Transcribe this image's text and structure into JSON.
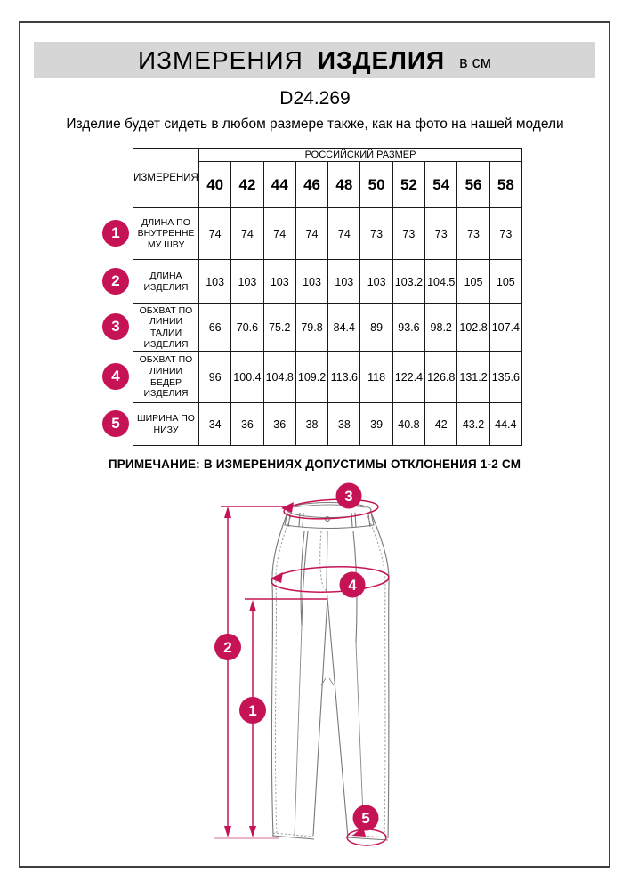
{
  "header": {
    "title_main": "ИЗМЕРЕНИЯ",
    "title_bold": "ИЗДЕЛИЯ",
    "title_unit": "в см"
  },
  "product_code": "D24.269",
  "description": "Изделие будет сидеть в любом размере также, как на фото на нашей модели",
  "table": {
    "corner_header": "ИЗМЕРЕНИЯ",
    "group_header": "РОССИЙСКИЙ РАЗМЕР",
    "sizes": [
      "40",
      "42",
      "44",
      "46",
      "48",
      "50",
      "52",
      "54",
      "56",
      "58"
    ],
    "rows": [
      {
        "num": "1",
        "label": "ДЛИНА ПО\nВНУТРЕННЕ\nМУ ШВУ",
        "values": [
          "74",
          "74",
          "74",
          "74",
          "74",
          "73",
          "73",
          "73",
          "73",
          "73"
        ]
      },
      {
        "num": "2",
        "label": "ДЛИНА\nИЗДЕЛИЯ",
        "values": [
          "103",
          "103",
          "103",
          "103",
          "103",
          "103",
          "103.2",
          "104.5",
          "105",
          "105"
        ]
      },
      {
        "num": "3",
        "label": "ОБХВАТ ПО\nЛИНИИ\nТАЛИИ\nИЗДЕЛИЯ",
        "values": [
          "66",
          "70.6",
          "75.2",
          "79.8",
          "84.4",
          "89",
          "93.6",
          "98.2",
          "102.8",
          "107.4"
        ]
      },
      {
        "num": "4",
        "label": "ОБХВАТ ПО\nЛИНИИ\nБЕДЕР\nИЗДЕЛИЯ",
        "values": [
          "96",
          "100.4",
          "104.8",
          "109.2",
          "113.6",
          "118",
          "122.4",
          "126.8",
          "131.2",
          "135.6"
        ]
      },
      {
        "num": "5",
        "label": "ШИРИНА ПО\nНИЗУ",
        "values": [
          "34",
          "36",
          "36",
          "38",
          "38",
          "39",
          "40.8",
          "42",
          "43.2",
          "44.4"
        ]
      }
    ]
  },
  "note": "ПРИМЕЧАНИЕ: В ИЗМЕРЕНИЯХ ДОПУСТИМЫ ОТКЛОНЕНИЯ 1-2 СМ",
  "diagram": {
    "markers": {
      "m1": "1",
      "m2": "2",
      "m3": "3",
      "m4": "4",
      "m5": "5"
    }
  },
  "colors": {
    "accent": "#C61356",
    "band": "#D6D6D6",
    "frame": "#3F3F3F",
    "sketch": "#787878"
  }
}
